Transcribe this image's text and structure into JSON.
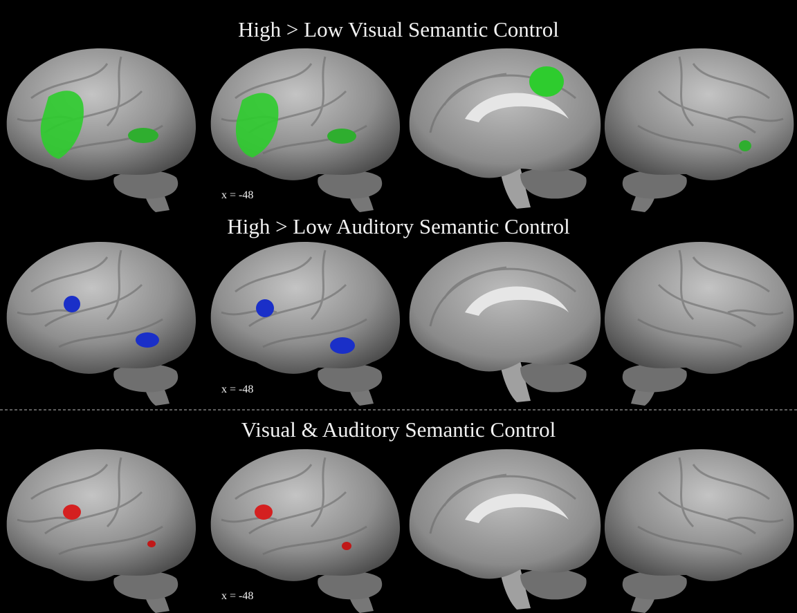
{
  "rows": [
    {
      "title": "High > Low Visual Semantic Control",
      "slice_label": "x = -48"
    },
    {
      "title": "High > Low Auditory Semantic Control",
      "slice_label": "x = -48"
    },
    {
      "title": "Visual & Auditory Semantic Control",
      "slice_label": "x = -48"
    }
  ]
}
